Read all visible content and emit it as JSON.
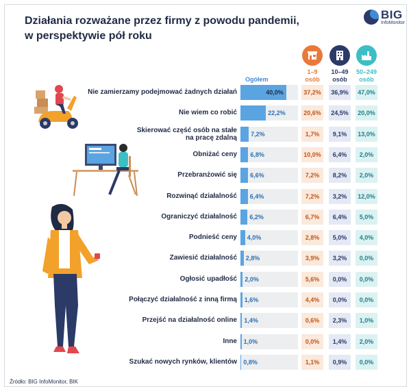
{
  "title_line1": "Działania rozważane przez firmy z powodu pandemii,",
  "title_line2": "w perspektywie pół roku",
  "logo": {
    "big": "BIG",
    "sub": "InfoMonitor"
  },
  "source": "Źródło: BIG InfoMonitor, BIK",
  "colors": {
    "overall_bar": "#5ba4e2",
    "micro": "#e9793a",
    "small": "#2b3a67",
    "medium": "#3bbfc4"
  },
  "chart_data": {
    "type": "bar",
    "orientation": "horizontal",
    "overall_header": "Ogółem",
    "column_headers": [
      {
        "line1": "1–9",
        "line2": "osób",
        "icon": "shop-icon",
        "color": "#e9793a"
      },
      {
        "line1": "10–49",
        "line2": "osób",
        "icon": "office-building-icon",
        "color": "#2b3a67"
      },
      {
        "line1": "50–249",
        "line2": "osób",
        "icon": "factory-icon",
        "color": "#3bbfc4"
      }
    ],
    "xlim": [
      0,
      50
    ],
    "rows": [
      {
        "label": [
          "Nie zamierzamy podejmować żadnych działań"
        ],
        "overall": 40.0,
        "overall_label": "40,0%",
        "micro": "37,2%",
        "small": "36,9%",
        "medium": "47,0%"
      },
      {
        "label": [
          "Nie wiem co robić"
        ],
        "overall": 22.2,
        "overall_label": "22,2%",
        "micro": "20,6%",
        "small": "24,5%",
        "medium": "20,0%"
      },
      {
        "label": [
          "Skierować część osób na stałe",
          "na pracę zdalną"
        ],
        "overall": 7.2,
        "overall_label": "7,2%",
        "micro": "1,7%",
        "small": "9,1%",
        "medium": "13,0%"
      },
      {
        "label": [
          "Obniżać ceny"
        ],
        "overall": 6.8,
        "overall_label": "6,8%",
        "micro": "10,0%",
        "small": "6,4%",
        "medium": "2,0%"
      },
      {
        "label": [
          "Przebranżowić się"
        ],
        "overall": 6.6,
        "overall_label": "6,6%",
        "micro": "7,2%",
        "small": "8,2%",
        "medium": "2,0%"
      },
      {
        "label": [
          "Rozwinąć działalność"
        ],
        "overall": 6.4,
        "overall_label": "6,4%",
        "micro": "7,2%",
        "small": "3,2%",
        "medium": "12,0%"
      },
      {
        "label": [
          "Ograniczyć działalność"
        ],
        "overall": 6.2,
        "overall_label": "6,2%",
        "micro": "6,7%",
        "small": "6,4%",
        "medium": "5,0%"
      },
      {
        "label": [
          "Podnieść ceny"
        ],
        "overall": 4.0,
        "overall_label": "4,0%",
        "micro": "2,8%",
        "small": "5,0%",
        "medium": "4,0%"
      },
      {
        "label": [
          "Zawiesić działalność"
        ],
        "overall": 2.8,
        "overall_label": "2,8%",
        "micro": "3,9%",
        "small": "3,2%",
        "medium": "0,0%"
      },
      {
        "label": [
          "Ogłosić upadłość"
        ],
        "overall": 2.0,
        "overall_label": "2,0%",
        "micro": "5,6%",
        "small": "0,0%",
        "medium": "0,0%"
      },
      {
        "label": [
          "Połączyć działalność z inną firmą"
        ],
        "overall": 1.6,
        "overall_label": "1,6%",
        "micro": "4,4%",
        "small": "0,0%",
        "medium": "0,0%"
      },
      {
        "label": [
          "Przejść na działalność online"
        ],
        "overall": 1.4,
        "overall_label": "1,4%",
        "micro": "0,6%",
        "small": "2,3%",
        "medium": "1,0%"
      },
      {
        "label": [
          "Inne"
        ],
        "overall": 1.0,
        "overall_label": "1,0%",
        "micro": "0,0%",
        "small": "1,4%",
        "medium": "2,0%"
      },
      {
        "label": [
          "Szukać nowych rynków, klientów"
        ],
        "overall": 0.8,
        "overall_label": "0,8%",
        "micro": "1,1%",
        "small": "0,9%",
        "medium": "0,0%"
      }
    ]
  }
}
